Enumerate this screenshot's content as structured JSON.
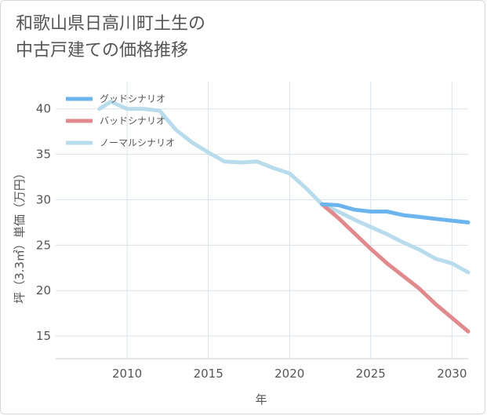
{
  "page": {
    "title_line1": "和歌山県日高川町土生の",
    "title_line2": "中古戸建ての価格推移"
  },
  "chart_data": {
    "type": "line",
    "xlabel": "年",
    "ylabel": "坪（3.3㎡）単価（万円）",
    "xlim": [
      2005.6,
      2031
    ],
    "ylim": [
      12.5,
      43
    ],
    "xticks": [
      2010,
      2015,
      2020,
      2025,
      2030
    ],
    "yticks": [
      15,
      20,
      25,
      30,
      35,
      40
    ],
    "grid": true,
    "legend_position": "top-left",
    "series": [
      {
        "name": "グッドシナリオ",
        "color": "#6cb4ee",
        "x": [
          2022,
          2023,
          2024,
          2025,
          2026,
          2027,
          2028,
          2029,
          2030,
          2031
        ],
        "y": [
          29.5,
          29.4,
          28.9,
          28.7,
          28.7,
          28.3,
          28.1,
          27.9,
          27.7,
          27.5
        ]
      },
      {
        "name": "バッドシナリオ",
        "color": "#e08a8e",
        "x": [
          2022,
          2023,
          2024,
          2025,
          2026,
          2027,
          2028,
          2029,
          2030,
          2031
        ],
        "y": [
          29.5,
          28.0,
          26.3,
          24.6,
          23.0,
          21.6,
          20.2,
          18.5,
          17.0,
          15.5
        ]
      },
      {
        "name": "ノーマルシナリオ",
        "color": "#b9dcec",
        "x": [
          2008.3,
          2009,
          2010,
          2011,
          2012,
          2013,
          2014,
          2015,
          2016,
          2017,
          2018,
          2019,
          2020,
          2021,
          2022,
          2023,
          2024,
          2025,
          2026,
          2027,
          2028,
          2029,
          2030,
          2031
        ],
        "y": [
          40.0,
          40.8,
          40.0,
          40.0,
          39.8,
          37.7,
          36.3,
          35.2,
          34.2,
          34.1,
          34.2,
          33.5,
          32.9,
          31.3,
          29.5,
          28.7,
          27.8,
          27.0,
          26.2,
          25.3,
          24.5,
          23.5,
          23.0,
          22.0
        ]
      }
    ]
  }
}
